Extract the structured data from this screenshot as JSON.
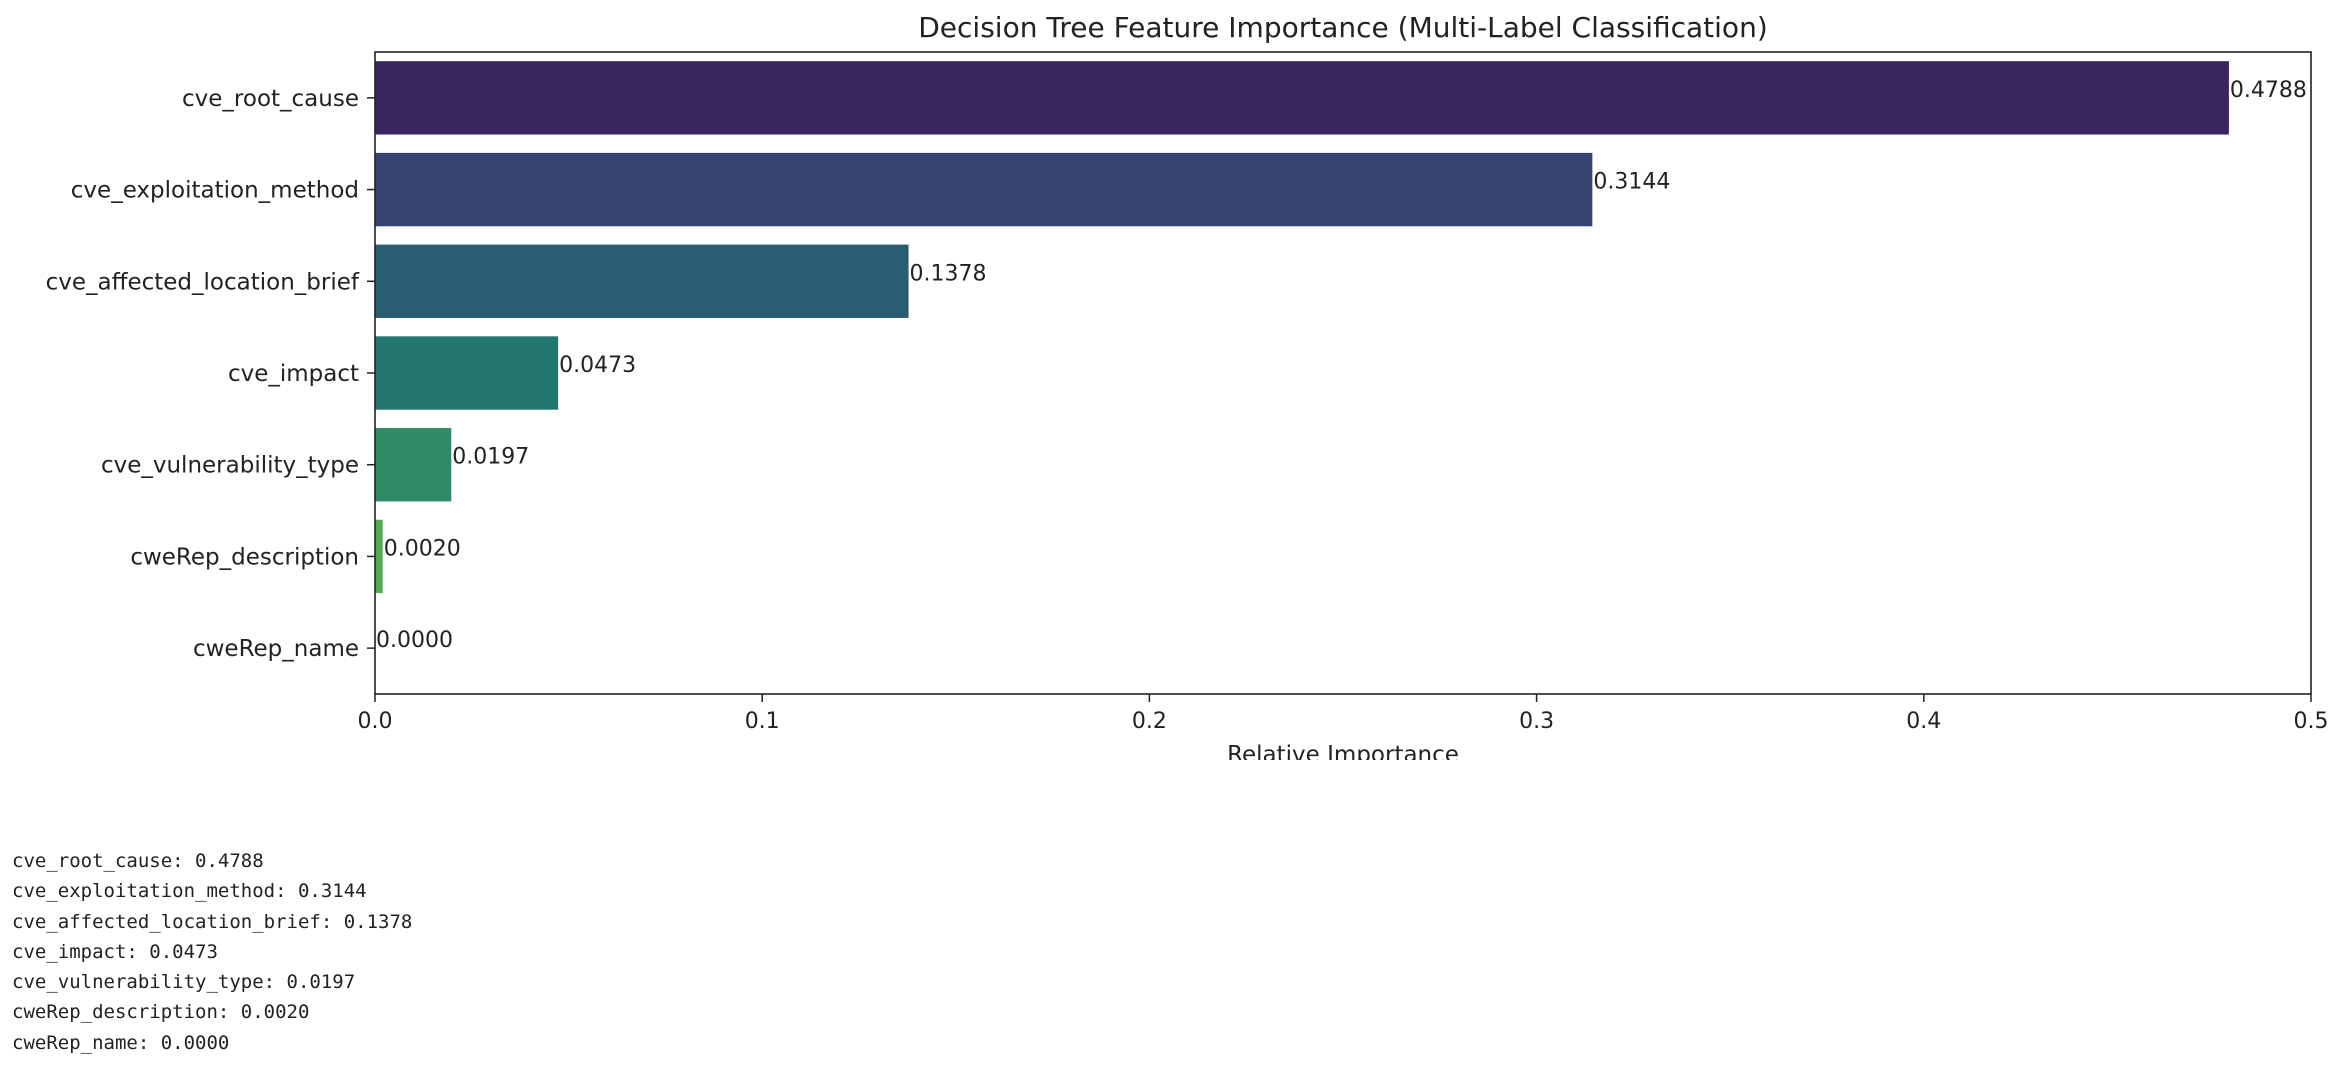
{
  "chart_data": {
    "type": "bar",
    "orientation": "horizontal",
    "title": "Decision Tree Feature Importance (Multi-Label Classification)",
    "xlabel": "Relative Importance",
    "ylabel": "",
    "xlim": [
      0,
      0.5
    ],
    "xticks": [
      "0.0",
      "0.1",
      "0.2",
      "0.3",
      "0.4",
      "0.5"
    ],
    "grid": false,
    "categories": [
      "cve_root_cause",
      "cve_exploitation_method",
      "cve_affected_location_brief",
      "cve_impact",
      "cve_vulnerability_type",
      "cweRep_description",
      "cweRep_name"
    ],
    "values": [
      0.4788,
      0.3144,
      0.1378,
      0.0473,
      0.0197,
      0.002,
      0.0
    ],
    "value_labels": [
      "0.4788",
      "0.3144",
      "0.1378",
      "0.0473",
      "0.0197",
      "0.0020",
      "0.0000"
    ],
    "colors": [
      "#3b2561",
      "#364373",
      "#2b5d72",
      "#237570",
      "#2e8b66",
      "#4eae51",
      "#97d155"
    ]
  },
  "output_lines": [
    "cve_root_cause: 0.4788",
    "cve_exploitation_method: 0.3144",
    "cve_affected_location_brief: 0.1378",
    "cve_impact: 0.0473",
    "cve_vulnerability_type: 0.0197",
    "cweRep_description: 0.0020",
    "cweRep_name: 0.0000"
  ]
}
